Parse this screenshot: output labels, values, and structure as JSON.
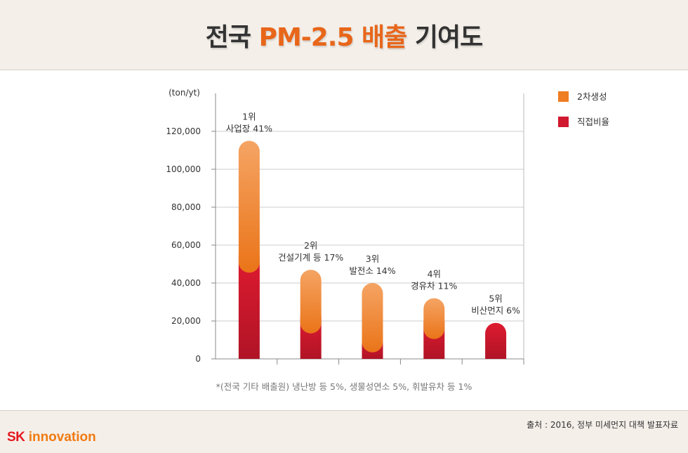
{
  "header": {
    "title_prefix": "전국",
    "title_highlight": "PM-2.5 배출",
    "title_suffix": "기여도"
  },
  "chart_data": {
    "type": "bar",
    "stacked": true,
    "unit_label": "(ton/yt)",
    "ylim": [
      0,
      140000
    ],
    "yticks": [
      0,
      20000,
      40000,
      60000,
      80000,
      100000,
      120000
    ],
    "ytick_labels": [
      "0",
      "20,000",
      "40,000",
      "60,000",
      "80,000",
      "100,000",
      "120,000"
    ],
    "categories": [
      "사업장",
      "건설기계 등",
      "발전소",
      "경유차",
      "비산먼지"
    ],
    "bar_labels": [
      {
        "rank": "1위",
        "text": "사업장 41%"
      },
      {
        "rank": "2위",
        "text": "건설기계 등 17%"
      },
      {
        "rank": "3위",
        "text": "발전소 14%"
      },
      {
        "rank": "4위",
        "text": "경유차 11%"
      },
      {
        "rank": "5위",
        "text": "비산먼지 6%"
      }
    ],
    "series": [
      {
        "name": "직접비율",
        "color": "#d0182e",
        "values": [
          51000,
          19000,
          9000,
          16000,
          19000
        ]
      },
      {
        "name": "2차생성",
        "color": "#ef7d22",
        "values": [
          64000,
          28000,
          31000,
          16000,
          0
        ]
      }
    ],
    "legend": [
      "2차생성",
      "직접비율"
    ],
    "legend_position": "top-right"
  },
  "note": "*(전국 기타 배출원) 냉난방 등 5%, 생물성연소 5%, 휘발유차 등 1%",
  "source": "출처 : 2016, 정부 미세먼지 대책 발표자료",
  "logo": {
    "sk": "SK",
    "innovation": "innovation"
  }
}
